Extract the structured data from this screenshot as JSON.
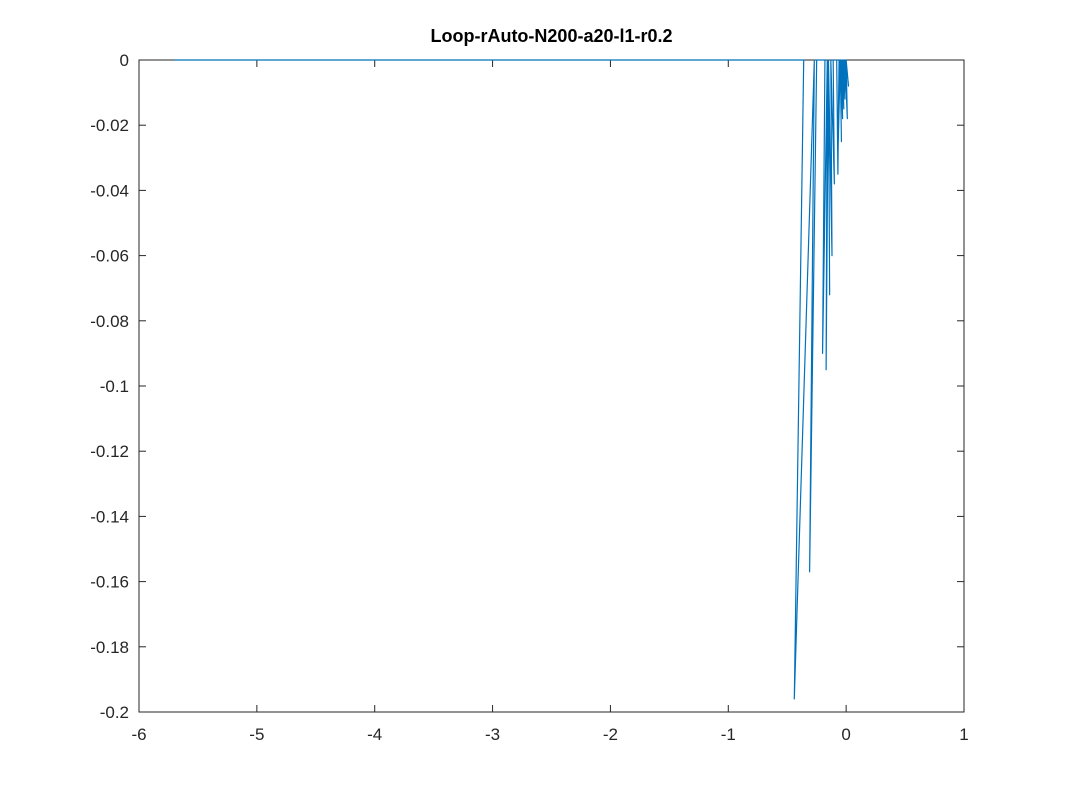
{
  "chart_data": {
    "type": "line",
    "title": "Loop-rAuto-N200-a20-l1-r0.2",
    "xlabel": "",
    "ylabel": "",
    "xlim": [
      -6,
      1
    ],
    "ylim": [
      -0.2,
      0
    ],
    "xticks": [
      -6,
      -5,
      -4,
      -3,
      -2,
      -1,
      0,
      1
    ],
    "yticks": [
      0,
      -0.02,
      -0.04,
      -0.06,
      -0.08,
      -0.1,
      -0.12,
      -0.14,
      -0.16,
      -0.18,
      -0.2
    ],
    "xtick_labels": [
      "-6",
      "-5",
      "-4",
      "-3",
      "-2",
      "-1",
      "0",
      "1"
    ],
    "ytick_labels": [
      "0",
      "-0.02",
      "-0.04",
      "-0.06",
      "-0.08",
      "-0.1",
      "-0.12",
      "-0.14",
      "-0.16",
      "-0.18",
      "-0.2"
    ],
    "grid": false,
    "legend": "none",
    "series": [
      {
        "color": "#0072BD",
        "x": [
          -5.7,
          -0.55,
          -0.36,
          -0.44,
          -0.27,
          -0.31,
          -0.25,
          -0.18,
          -0.2,
          -0.16,
          -0.17,
          -0.15,
          -0.14,
          -0.15,
          -0.12,
          -0.13,
          -0.1,
          -0.11,
          -0.08,
          -0.07,
          -0.06,
          -0.07,
          -0.05,
          -0.04,
          -0.05,
          -0.03,
          -0.04,
          -0.02,
          -0.03,
          -0.01,
          -0.02,
          0.0,
          -0.01,
          0.01,
          0.0,
          0.02,
          0.0
        ],
        "y": [
          0.0,
          0.0,
          0.0,
          -0.196,
          0.0,
          -0.157,
          0.0,
          0.0,
          -0.09,
          0.0,
          -0.095,
          0.0,
          -0.072,
          0.0,
          -0.06,
          0.0,
          -0.038,
          0.0,
          0.0,
          -0.035,
          0.0,
          -0.03,
          0.0,
          -0.025,
          0.0,
          -0.018,
          0.0,
          -0.015,
          0.0,
          -0.012,
          0.0,
          -0.01,
          0.0,
          -0.018,
          0.0,
          -0.008,
          0.0
        ]
      }
    ]
  }
}
